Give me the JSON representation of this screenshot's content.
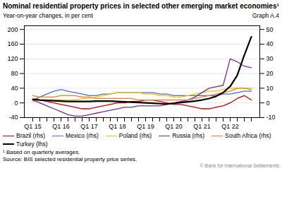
{
  "chart_data": {
    "type": "line",
    "title": "Nominal residential property prices in selected other emerging market economies¹",
    "subtitle": "Year-on-year changes, in per cent",
    "annotations": [
      "Graph A.4",
      "¹  Based on quarterly averages.",
      "Source: BIS selected residential property price series.",
      "© Bank for International Settlements"
    ],
    "categories": [
      "Q1 15",
      null,
      null,
      null,
      "Q1 16",
      null,
      null,
      null,
      "Q1 17",
      null,
      null,
      null,
      "Q1 18",
      null,
      null,
      null,
      "Q1 19",
      null,
      null,
      null,
      "Q1 20",
      null,
      null,
      null,
      "Q1 21",
      null,
      null,
      null,
      "Q1 22",
      null,
      null,
      null
    ],
    "ylim": [
      -40,
      210
    ],
    "yticks": [
      -40,
      0,
      40,
      80,
      120,
      160,
      200
    ],
    "y2lim": [
      -10,
      52.5
    ],
    "y2ticks": [
      -10,
      0,
      10,
      20,
      30,
      40,
      50
    ],
    "grid": true,
    "legend": "bottom",
    "series": [
      {
        "name": "Brazil (rhs)",
        "color": "#cc0000",
        "axis": "y2",
        "values": [
          2,
          2,
          1,
          0,
          -1,
          -2,
          -3,
          -4,
          -4,
          -3,
          -2,
          -1,
          0,
          0,
          1,
          1,
          2,
          2,
          1,
          0,
          -1,
          -1,
          -2,
          -3,
          -4,
          -4,
          -3,
          -2,
          0,
          3,
          5,
          2
        ]
      },
      {
        "name": "Mexico (rhs)",
        "color": "#4472c4",
        "axis": "y2",
        "values": [
          2,
          4,
          6,
          8,
          9,
          8,
          7,
          6,
          5,
          5,
          6,
          6,
          7,
          7,
          7,
          7,
          7,
          7,
          6,
          6,
          5,
          5,
          5,
          5,
          5,
          5,
          5,
          6,
          6,
          7,
          8,
          8
        ]
      },
      {
        "name": "Poland (rhs)",
        "color": "#ffc000",
        "axis": "y2",
        "values": [
          1,
          2,
          2,
          2,
          2,
          2,
          2,
          3,
          3,
          4,
          5,
          6,
          7,
          7,
          7,
          7,
          6,
          6,
          5,
          5,
          4,
          4,
          5,
          6,
          7,
          8,
          8,
          9,
          10,
          10,
          10,
          10
        ]
      },
      {
        "name": "Russia (rhs)",
        "color": "#7030a0",
        "axis": "y2",
        "values": [
          2,
          0,
          -2,
          -4,
          -6,
          -8,
          -9,
          -9,
          -8,
          -7,
          -6,
          -5,
          -4,
          -3,
          -3,
          -2,
          -2,
          -2,
          -2,
          -1,
          0,
          1,
          2,
          4,
          7,
          10,
          11,
          12,
          30,
          28,
          25,
          24
        ]
      },
      {
        "name": "South Africa (rhs)",
        "color": "#ed7d31",
        "axis": "y2",
        "values": [
          5,
          4,
          4,
          4,
          5,
          5,
          5,
          4,
          4,
          3,
          3,
          3,
          3,
          3,
          3,
          2,
          2,
          2,
          2,
          2,
          2,
          2,
          2,
          3,
          4,
          5,
          6,
          7,
          8,
          10,
          10,
          9
        ]
      },
      {
        "name": "Turkey (lhs)",
        "color": "#000000",
        "values": [
          10,
          8,
          7,
          6,
          5,
          4,
          4,
          4,
          4,
          5,
          5,
          5,
          4,
          3,
          2,
          1,
          0,
          -1,
          -2,
          -3,
          -1,
          1,
          3,
          5,
          8,
          12,
          18,
          28,
          45,
          75,
          130,
          180
        ]
      }
    ]
  }
}
